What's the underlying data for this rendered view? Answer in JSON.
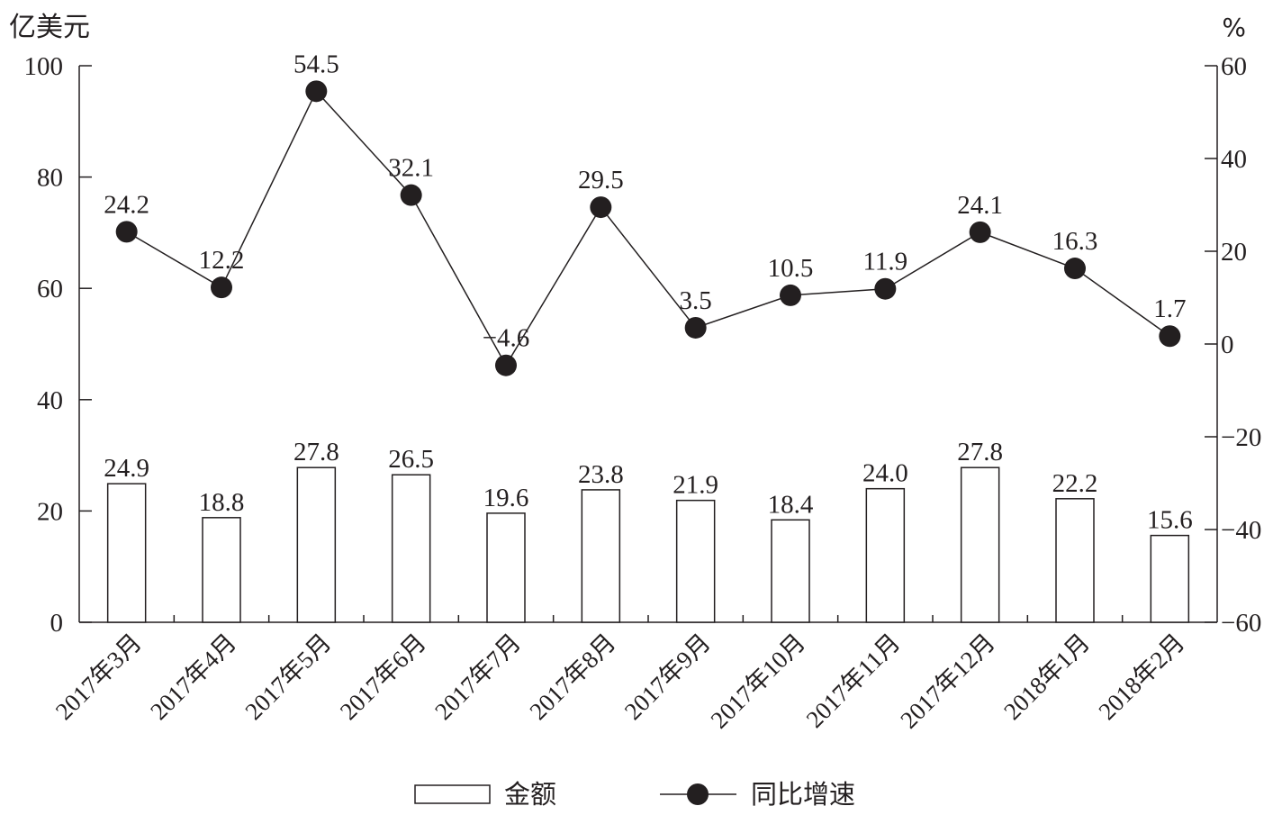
{
  "chart_data": {
    "type": "bar",
    "categories": [
      "2017年3月",
      "2017年4月",
      "2017年5月",
      "2017年6月",
      "2017年7月",
      "2017年8月",
      "2017年9月",
      "2017年10月",
      "2017年11月",
      "2017年12月",
      "2018年1月",
      "2018年2月"
    ],
    "series": [
      {
        "name": "金额",
        "type": "bar",
        "axis": "left",
        "values": [
          24.9,
          18.8,
          27.8,
          26.5,
          19.6,
          23.8,
          21.9,
          18.4,
          24.0,
          27.8,
          22.2,
          15.6
        ],
        "labels": [
          "24.9",
          "18.8",
          "27.8",
          "26.5",
          "19.6",
          "23.8",
          "21.9",
          "18.4",
          "24.0",
          "27.8",
          "22.2",
          "15.6"
        ]
      },
      {
        "name": "同比增速",
        "type": "line",
        "axis": "right",
        "values": [
          24.2,
          12.2,
          54.5,
          32.1,
          -4.6,
          29.5,
          3.5,
          10.5,
          11.9,
          24.1,
          16.3,
          1.7
        ],
        "labels": [
          "24.2",
          "12.2",
          "54.5",
          "32.1",
          "−4.6",
          "29.5",
          "3.5",
          "10.5",
          "11.9",
          "24.1",
          "16.3",
          "1.7"
        ]
      }
    ],
    "y_left": {
      "label": "亿美元",
      "ylim": [
        0,
        100
      ],
      "ticks": [
        0,
        20,
        40,
        60,
        80,
        100
      ],
      "tick_labels": [
        "0",
        "20",
        "40",
        "60",
        "80",
        "100"
      ]
    },
    "y_right": {
      "label": "%",
      "ylim": [
        -60,
        60
      ],
      "ticks": [
        -60,
        -40,
        -20,
        0,
        20,
        40,
        60
      ],
      "tick_labels": [
        "−60",
        "−40",
        "−20",
        "0",
        "20",
        "40",
        "60"
      ]
    },
    "xlabel": "",
    "title": "",
    "grid": false,
    "legend": {
      "position": "bottom",
      "items": [
        "金额",
        "同比增速"
      ]
    },
    "colors": {
      "ink": "#231f20",
      "bar_fill": "#ffffff"
    }
  }
}
